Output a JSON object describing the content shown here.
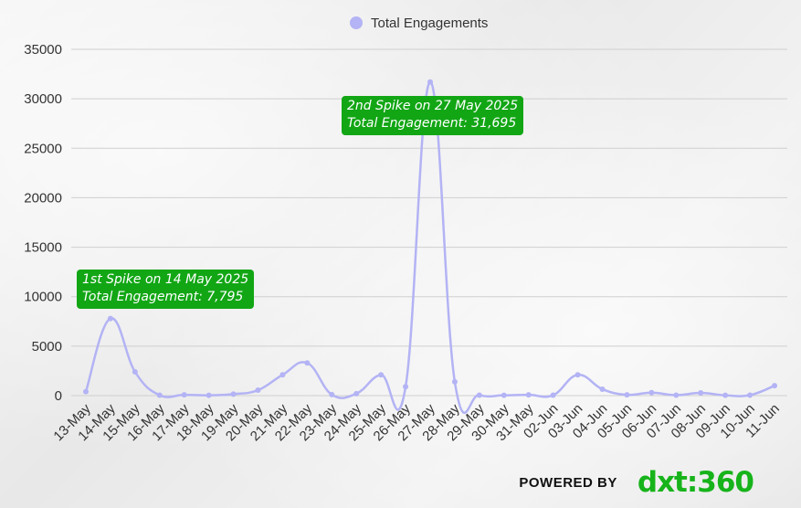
{
  "chart_data": {
    "type": "line",
    "categories": [
      "13-May",
      "14-May",
      "15-May",
      "16-May",
      "17-May",
      "18-May",
      "19-May",
      "20-May",
      "21-May",
      "22-May",
      "23-May",
      "24-May",
      "25-May",
      "26-May",
      "27-May",
      "28-May",
      "29-May",
      "30-May",
      "31-May",
      "02-Jun",
      "03-Jun",
      "04-Jun",
      "05-Jun",
      "06-Jun",
      "07-Jun",
      "08-Jun",
      "09-Jun",
      "10-Jun",
      "11-Jun"
    ],
    "series": [
      {
        "name": "Total Engagements",
        "color": "#b3b3f5",
        "values": [
          400,
          7795,
          2400,
          50,
          80,
          30,
          150,
          550,
          2100,
          3300,
          100,
          200,
          2100,
          900,
          31695,
          1400,
          50,
          30,
          80,
          50,
          2100,
          650,
          80,
          300,
          50,
          280,
          30,
          50,
          1000
        ]
      }
    ],
    "ylim": [
      0,
      35000
    ],
    "yticks": [
      0,
      5000,
      10000,
      15000,
      20000,
      25000,
      30000,
      35000
    ],
    "grid": true,
    "legend_position": "top-center",
    "annotations": [
      {
        "line1": "1st Spike on 14 May 2025",
        "line2": "Total Engagement:  7,795"
      },
      {
        "line1": "2nd Spike on 27 May 2025",
        "line2": "Total Engagement: 31,695"
      }
    ]
  },
  "branding": {
    "powered_by": "POWERED BY",
    "logo": "dxt:360"
  },
  "colors": {
    "annotation_bg": "#12a615",
    "grid": "#cfcfcf",
    "logo": "#16b31a"
  }
}
